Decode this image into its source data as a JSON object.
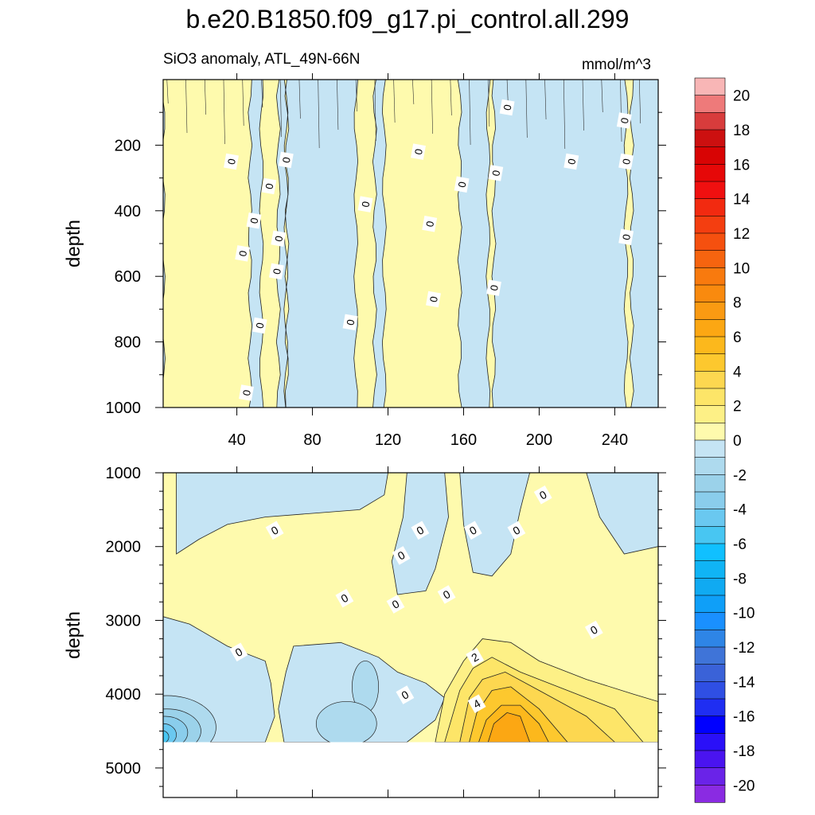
{
  "chart_data": {
    "type": "heatmap",
    "title": "b.e20.B1850.f09_g17.pi_control.all.299",
    "subtitle": "SiO3 anomaly, ATL_49N-66N",
    "units": "mmol/m^3",
    "ylabel": "depth",
    "colorbar": {
      "levels": [
        -21,
        -20,
        -19,
        -18,
        -17,
        -16,
        -15,
        -14,
        -13,
        -12,
        -11,
        -10,
        -9,
        -8,
        -7,
        -6,
        -5,
        -4,
        -3,
        -2,
        -1,
        0,
        1,
        2,
        3,
        4,
        5,
        6,
        7,
        8,
        9,
        10,
        11,
        12,
        13,
        14,
        15,
        16,
        17,
        18,
        19,
        20,
        21
      ],
      "colors": [
        "#8a2be2",
        "#6a23e8",
        "#4a14f0",
        "#2a10f8",
        "#0000ff",
        "#1f2ef2",
        "#2f4fe4",
        "#3a62d8",
        "#3f74d8",
        "#2e85e6",
        "#1a90ff",
        "#0f9ff8",
        "#10aaf2",
        "#10b4f5",
        "#10c0ff",
        "#48c6f2",
        "#6ac8f0",
        "#8acdec",
        "#9bd2ea",
        "#aedaee",
        "#c5e4f4",
        "#fefaad",
        "#fdf086",
        "#fde568",
        "#fdd750",
        "#fdc82e",
        "#fcb81c",
        "#fca713",
        "#fa9a12",
        "#f98a0e",
        "#f87a0e",
        "#f6640f",
        "#f5500f",
        "#f43e10",
        "#f22a10",
        "#f01010",
        "#e60808",
        "#d80404",
        "#cc1010",
        "#d83c3c",
        "#ee7a7a",
        "#f8b6b6"
      ],
      "tick_labels": [
        "-20",
        "-18",
        "-16",
        "-14",
        "-12",
        "-10",
        "-8",
        "-6",
        "-4",
        "-2",
        "0",
        "2",
        "4",
        "6",
        "8",
        "10",
        "12",
        "14",
        "16",
        "18",
        "20"
      ],
      "tick_values": [
        -20,
        -18,
        -16,
        -14,
        -12,
        -10,
        -8,
        -6,
        -4,
        -2,
        0,
        2,
        4,
        6,
        8,
        10,
        12,
        14,
        16,
        18,
        20
      ]
    },
    "panels": [
      {
        "name": "upper",
        "xlim": [
          1,
          263
        ],
        "ylim": [
          1000,
          0
        ],
        "xticks": [
          40,
          80,
          120,
          160,
          200,
          240
        ],
        "xtick_labels": [
          "40",
          "80",
          "120",
          "160",
          "200",
          "240"
        ],
        "yticks": [
          200,
          400,
          600,
          800,
          1000
        ],
        "ytick_labels": [
          "200",
          "400",
          "600",
          "800",
          "1000"
        ],
        "contour_labels": [
          {
            "text": "0",
            "x": 37,
            "y": 250
          },
          {
            "text": "0",
            "x": 66,
            "y": 245
          },
          {
            "text": "0",
            "x": 57,
            "y": 325
          },
          {
            "text": "0",
            "x": 49,
            "y": 430
          },
          {
            "text": "0",
            "x": 62,
            "y": 485
          },
          {
            "text": "0",
            "x": 43,
            "y": 530
          },
          {
            "text": "0",
            "x": 61,
            "y": 585
          },
          {
            "text": "0",
            "x": 52,
            "y": 750
          },
          {
            "text": "0",
            "x": 45,
            "y": 955
          },
          {
            "text": "0",
            "x": 108,
            "y": 380
          },
          {
            "text": "0",
            "x": 100,
            "y": 740
          },
          {
            "text": "0",
            "x": 136,
            "y": 220
          },
          {
            "text": "0",
            "x": 142,
            "y": 440
          },
          {
            "text": "0",
            "x": 144,
            "y": 670
          },
          {
            "text": "0",
            "x": 159,
            "y": 320
          },
          {
            "text": "0",
            "x": 177,
            "y": 285
          },
          {
            "text": "0",
            "x": 176,
            "y": 635
          },
          {
            "text": "0",
            "x": 183,
            "y": 85
          },
          {
            "text": "0",
            "x": 217,
            "y": 250
          },
          {
            "text": "0",
            "x": 245,
            "y": 125
          },
          {
            "text": "0",
            "x": 246,
            "y": 250
          },
          {
            "text": "0",
            "x": 246,
            "y": 480
          }
        ]
      },
      {
        "name": "lower",
        "xlim": [
          1,
          263
        ],
        "ylim": [
          5400,
          1000
        ],
        "yticks": [
          1000,
          2000,
          3000,
          4000,
          5000
        ],
        "ytick_labels": [
          "1000",
          "2000",
          "3000",
          "4000",
          "5000"
        ],
        "data_bottom": 4650,
        "contour_labels": [
          {
            "text": "0",
            "x": 60,
            "y": 1780
          },
          {
            "text": "0",
            "x": 127,
            "y": 2120
          },
          {
            "text": "0",
            "x": 137,
            "y": 1780
          },
          {
            "text": "0",
            "x": 165,
            "y": 1780
          },
          {
            "text": "0",
            "x": 188,
            "y": 1780
          },
          {
            "text": "0",
            "x": 202,
            "y": 1300
          },
          {
            "text": "0",
            "x": 97,
            "y": 2700
          },
          {
            "text": "0",
            "x": 124,
            "y": 2780
          },
          {
            "text": "0",
            "x": 151,
            "y": 2650
          },
          {
            "text": "0",
            "x": 41,
            "y": 3430
          },
          {
            "text": "0",
            "x": 129,
            "y": 4010
          },
          {
            "text": "0",
            "x": 229,
            "y": 3130
          },
          {
            "text": "2",
            "x": 166,
            "y": 3500
          },
          {
            "text": "4",
            "x": 167,
            "y": 4130
          }
        ]
      }
    ]
  }
}
